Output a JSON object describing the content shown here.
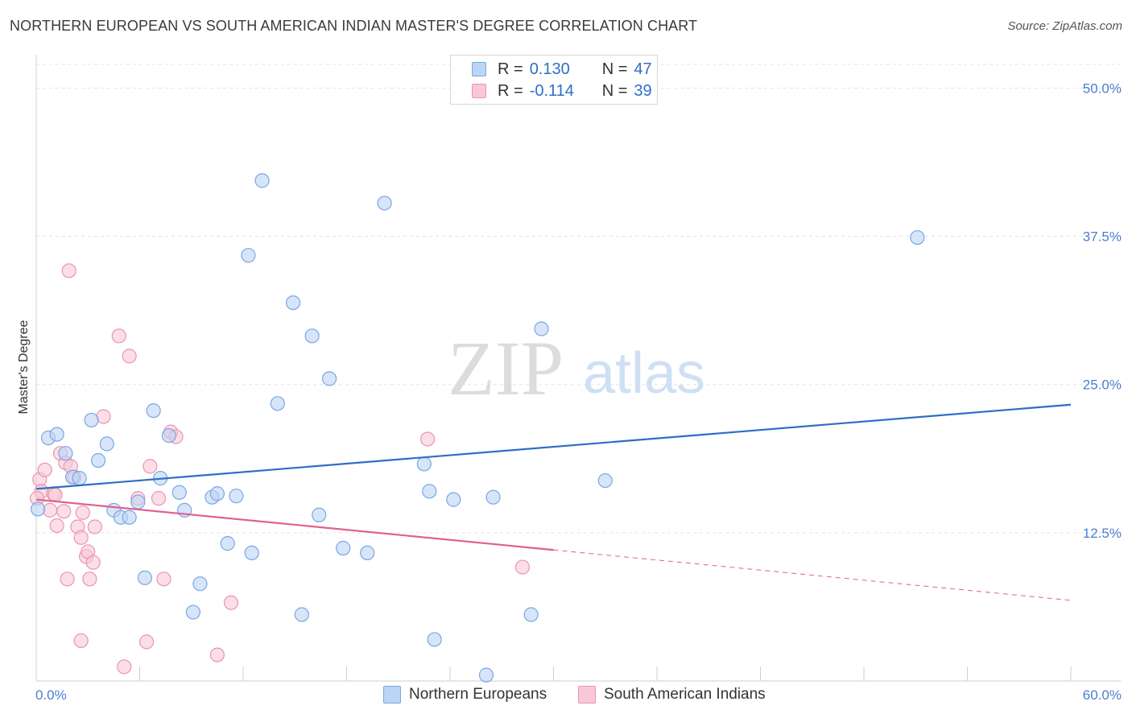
{
  "title": "NORTHERN EUROPEAN VS SOUTH AMERICAN INDIAN MASTER'S DEGREE CORRELATION CHART",
  "source": "Source: ZipAtlas.com",
  "watermark": {
    "zip": "ZIP",
    "atlas": "atlas"
  },
  "legend": {
    "r_label": "R =",
    "n_label": "N =",
    "series1": {
      "r": "0.130",
      "n": "47"
    },
    "series2": {
      "r": "-0.114",
      "n": "39"
    }
  },
  "colors": {
    "blue_fill": "#bcd4f5",
    "blue_stroke": "#7aa6e4",
    "blue_line": "#2e6ec6",
    "pink_fill": "#f9c8d7",
    "pink_stroke": "#ec93b0",
    "pink_line": "#e0608d",
    "tick_text": "#4a7fd0",
    "grid": "#e3e3e3"
  },
  "chart_data": {
    "type": "scatter",
    "title": "NORTHERN EUROPEAN VS SOUTH AMERICAN INDIAN MASTER'S DEGREE CORRELATION CHART",
    "xlabel": "",
    "ylabel": "Master's Degree",
    "xlim": [
      0,
      60
    ],
    "ylim": [
      0,
      52
    ],
    "x_tick_labels": [
      "0.0%",
      "60.0%"
    ],
    "y_ticks": [
      12.5,
      25.0,
      37.5,
      50.0
    ],
    "y_tick_labels": [
      "12.5%",
      "25.0%",
      "37.5%",
      "50.0%"
    ],
    "legend_position": "top-center",
    "series": [
      {
        "name": "Northern Europeans",
        "r": 0.13,
        "n": 47,
        "trend": {
          "x0": 0,
          "y0": 16.2,
          "x1": 60,
          "y1": 23.3,
          "solid_to": 60
        },
        "points": [
          [
            0.1,
            14.5
          ],
          [
            0.7,
            20.5
          ],
          [
            1.2,
            20.8
          ],
          [
            1.7,
            19.2
          ],
          [
            2.1,
            17.2
          ],
          [
            2.5,
            17.1
          ],
          [
            3.2,
            22.0
          ],
          [
            3.6,
            18.6
          ],
          [
            4.1,
            20.0
          ],
          [
            4.5,
            14.4
          ],
          [
            4.9,
            13.8
          ],
          [
            5.4,
            13.8
          ],
          [
            5.9,
            15.1
          ],
          [
            6.3,
            8.7
          ],
          [
            6.8,
            22.8
          ],
          [
            7.2,
            17.1
          ],
          [
            7.7,
            20.7
          ],
          [
            8.3,
            15.9
          ],
          [
            8.6,
            14.4
          ],
          [
            9.1,
            5.8
          ],
          [
            9.5,
            8.2
          ],
          [
            10.2,
            15.5
          ],
          [
            10.5,
            15.8
          ],
          [
            11.1,
            11.6
          ],
          [
            11.6,
            15.6
          ],
          [
            12.3,
            35.9
          ],
          [
            12.5,
            10.8
          ],
          [
            13.1,
            42.2
          ],
          [
            14.0,
            23.4
          ],
          [
            14.9,
            31.9
          ],
          [
            15.4,
            5.6
          ],
          [
            16.0,
            29.1
          ],
          [
            16.4,
            14.0
          ],
          [
            17.0,
            25.5
          ],
          [
            17.8,
            11.2
          ],
          [
            19.2,
            10.8
          ],
          [
            20.2,
            40.3
          ],
          [
            22.5,
            18.3
          ],
          [
            22.8,
            16.0
          ],
          [
            23.1,
            3.5
          ],
          [
            24.2,
            15.3
          ],
          [
            26.1,
            0.5
          ],
          [
            26.5,
            15.5
          ],
          [
            28.7,
            5.6
          ],
          [
            29.3,
            29.7
          ],
          [
            33.0,
            16.9
          ],
          [
            51.1,
            37.4
          ]
        ]
      },
      {
        "name": "South American Indians",
        "r": -0.114,
        "n": 39,
        "trend": {
          "x0": 0,
          "y0": 15.3,
          "x1": 60,
          "y1": 6.8,
          "solid_to": 30.0
        },
        "points": [
          [
            0.2,
            17.0
          ],
          [
            0.3,
            16.0
          ],
          [
            0.5,
            17.8
          ],
          [
            0.8,
            14.4
          ],
          [
            1.0,
            15.8
          ],
          [
            1.1,
            15.7
          ],
          [
            1.2,
            13.1
          ],
          [
            1.4,
            19.2
          ],
          [
            1.6,
            14.3
          ],
          [
            1.7,
            18.4
          ],
          [
            1.8,
            8.6
          ],
          [
            1.9,
            34.6
          ],
          [
            2.0,
            18.1
          ],
          [
            2.2,
            17.2
          ],
          [
            2.4,
            13.0
          ],
          [
            2.6,
            12.1
          ],
          [
            2.6,
            3.4
          ],
          [
            2.7,
            14.2
          ],
          [
            2.9,
            10.5
          ],
          [
            3.0,
            10.9
          ],
          [
            3.1,
            8.6
          ],
          [
            3.3,
            10.0
          ],
          [
            3.4,
            13.0
          ],
          [
            3.9,
            22.3
          ],
          [
            4.8,
            29.1
          ],
          [
            5.1,
            1.2
          ],
          [
            5.4,
            27.4
          ],
          [
            5.9,
            15.4
          ],
          [
            6.4,
            3.3
          ],
          [
            6.6,
            18.1
          ],
          [
            7.1,
            15.4
          ],
          [
            7.4,
            8.6
          ],
          [
            7.8,
            21.0
          ],
          [
            8.1,
            20.6
          ],
          [
            10.5,
            2.2
          ],
          [
            11.3,
            6.6
          ],
          [
            22.7,
            20.4
          ],
          [
            28.2,
            9.6
          ],
          [
            0.05,
            15.4
          ]
        ]
      }
    ]
  },
  "bottom_legend": {
    "series1_label": "Northern Europeans",
    "series2_label": "South American Indians"
  }
}
